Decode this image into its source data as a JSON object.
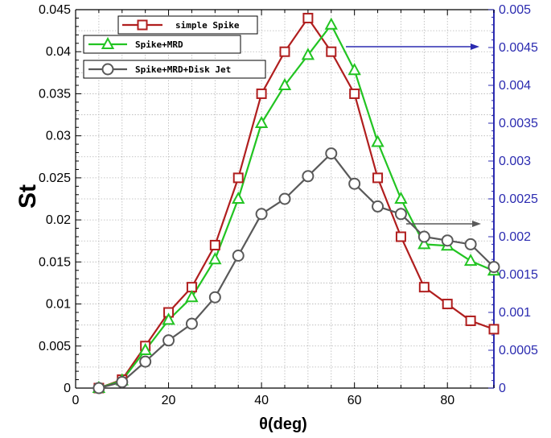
{
  "chart_data": {
    "type": "line",
    "xlabel": "θ(deg)",
    "ylabel": "St",
    "y2label": "",
    "xlim": [
      0,
      90
    ],
    "ylim": [
      0,
      0.045
    ],
    "y2lim": [
      0,
      0.005
    ],
    "grid": true,
    "legend_position": "top-left",
    "x_ticks": [
      0,
      20,
      40,
      60,
      80
    ],
    "x_tick_labels": [
      "0",
      "20",
      "40",
      "60",
      "80"
    ],
    "y_ticks": [
      0,
      0.005,
      0.01,
      0.015,
      0.02,
      0.025,
      0.03,
      0.035,
      0.04,
      0.045
    ],
    "y_tick_labels": [
      "0",
      "0.005",
      "0.01",
      "0.015",
      "0.02",
      "0.025",
      "0.03",
      "0.035",
      "0.04",
      "0.045"
    ],
    "y2_ticks": [
      0,
      0.0005,
      0.001,
      0.0015,
      0.002,
      0.0025,
      0.003,
      0.0035,
      0.004,
      0.0045,
      0.005
    ],
    "y2_tick_labels": [
      "0",
      "0.0005",
      "0.001",
      "0.0015",
      "0.002",
      "0.0025",
      "0.003",
      "0.0035",
      "0.004",
      "0.0045",
      "0.005"
    ],
    "series": [
      {
        "name": "simple Spike",
        "axis": "left",
        "color": "#b01e1e",
        "marker": "square",
        "x": [
          5,
          10,
          15,
          20,
          25,
          30,
          35,
          40,
          45,
          50,
          55,
          60,
          65,
          70,
          75,
          80,
          85,
          90
        ],
        "values": [
          0,
          0.001,
          0.005,
          0.009,
          0.012,
          0.017,
          0.025,
          0.035,
          0.04,
          0.044,
          0.04,
          0.035,
          0.025,
          0.018,
          0.012,
          0.01,
          0.008,
          0.007
        ]
      },
      {
        "name": "Spike+MRD",
        "axis": "right",
        "color": "#22c422",
        "marker": "triangle",
        "x": [
          5,
          10,
          15,
          20,
          25,
          30,
          35,
          40,
          45,
          50,
          55,
          60,
          65,
          70,
          75,
          80,
          85,
          90
        ],
        "values": [
          0,
          0.0001,
          0.0005,
          0.0009,
          0.0012,
          0.0017,
          0.0025,
          0.0035,
          0.004,
          0.0044,
          0.0048,
          0.0042,
          0.00325,
          0.0025,
          0.0019,
          0.00188,
          0.00168,
          0.00155
        ]
      },
      {
        "name": "Spike+MRD+Disk Jet",
        "axis": "right",
        "color": "#595959",
        "marker": "circle",
        "x": [
          5,
          10,
          15,
          20,
          25,
          30,
          35,
          40,
          45,
          50,
          55,
          60,
          65,
          70,
          75,
          80,
          85,
          90
        ],
        "values": [
          0,
          8e-05,
          0.00035,
          0.00063,
          0.00085,
          0.0012,
          0.00175,
          0.0023,
          0.0025,
          0.0028,
          0.0031,
          0.0027,
          0.0024,
          0.0023,
          0.002,
          0.00195,
          0.0019,
          0.0016
        ]
      }
    ]
  }
}
